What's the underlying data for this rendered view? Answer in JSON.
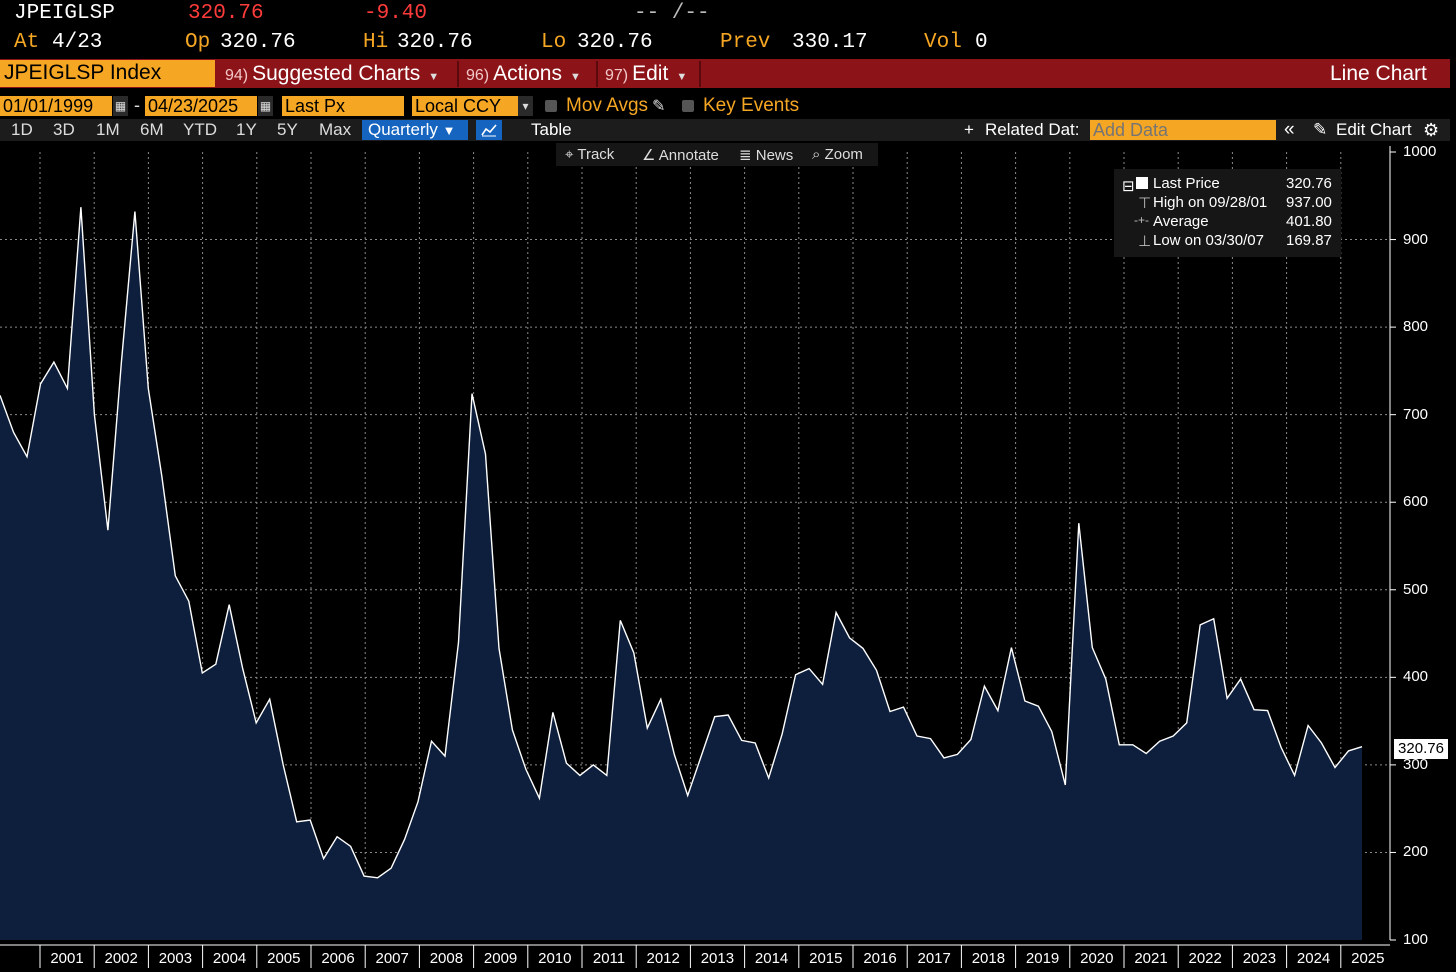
{
  "quote": {
    "ticker": "JPEIGLSP",
    "last": "320.76",
    "change": "-9.40",
    "time_placeholder": "-- /--",
    "at_label": "At",
    "at_value": "4/23",
    "op_label": "Op",
    "op_value": "320.76",
    "hi_label": "Hi",
    "hi_value": "320.76",
    "lo_label": "Lo",
    "lo_value": "320.76",
    "prev_label": "Prev",
    "prev_value": "330.17",
    "vol_label": "Vol",
    "vol_value": "0"
  },
  "menubar": {
    "security": "JPEIGLSP Index",
    "suggested_num": "94)",
    "suggested_label": "Suggested Charts",
    "actions_num": "96)",
    "actions_label": "Actions",
    "edit_num": "97)",
    "edit_label": "Edit",
    "chart_type": "Line Chart"
  },
  "controls": {
    "start_date": "01/01/1999",
    "dash": "-",
    "end_date": "04/23/2025",
    "field": "Last Px",
    "currency": "Local CCY",
    "mov_avgs": "Mov Avgs",
    "key_events": "Key Events"
  },
  "ranges": {
    "items": [
      "1D",
      "3D",
      "1M",
      "6M",
      "YTD",
      "1Y",
      "5Y",
      "Max"
    ],
    "period": "Quarterly",
    "table": "Table",
    "related_data": "Related Dat:",
    "add_data_placeholder": "Add Data",
    "edit_chart": "Edit Chart"
  },
  "tools": {
    "track": "Track",
    "annotate": "Annotate",
    "news": "News",
    "zoom": "Zoom"
  },
  "colors": {
    "accent": "#f5a623",
    "menu_red": "#8c1419",
    "area_fill": "#0d1f3c",
    "line": "#ffffff",
    "active_blue": "#1565c0"
  },
  "chart_data": {
    "type": "area",
    "ylim": [
      100,
      1000
    ],
    "yticks": [
      "100",
      "200",
      "300",
      "400",
      "500",
      "600",
      "700",
      "800",
      "900",
      "1000"
    ],
    "xticks": [
      "2001",
      "2002",
      "2003",
      "2004",
      "2005",
      "2006",
      "2007",
      "2008",
      "2009",
      "2010",
      "2011",
      "2012",
      "2013",
      "2014",
      "2015",
      "2016",
      "2017",
      "2018",
      "2019",
      "2020",
      "2021",
      "2022",
      "2023",
      "2024",
      "2025"
    ],
    "grid": true,
    "last_value_label": "320.76",
    "legend": {
      "last_price_label": "Last Price",
      "last_price_value": "320.76",
      "high_label": "High on 09/28/01",
      "high_value": "937.00",
      "average_label": "Average",
      "average_value": "401.80",
      "low_label": "Low on 03/30/07",
      "low_value": "169.87"
    },
    "series": [
      {
        "values": [
          722,
          680,
          652,
          735,
          760,
          730,
          937,
          700,
          568,
          760,
          932,
          730,
          630,
          516,
          487,
          405,
          415,
          483,
          410,
          348,
          375,
          300,
          235,
          237,
          193,
          218,
          207,
          173,
          171,
          182,
          215,
          258,
          327,
          310,
          440,
          724,
          655,
          433,
          340,
          295,
          262,
          360,
          302,
          288,
          300,
          288,
          465,
          428,
          342,
          375,
          312,
          265,
          310,
          355,
          357,
          328,
          325,
          285,
          335,
          403,
          410,
          392,
          474,
          445,
          433,
          408,
          361,
          366,
          333,
          330,
          308,
          312,
          329,
          390,
          362,
          434,
          373,
          367,
          338,
          277,
          576,
          434,
          398,
          323,
          323,
          313,
          327,
          333,
          348,
          460,
          467,
          376,
          398,
          363,
          362,
          320,
          288,
          345,
          325,
          297,
          316,
          320.76
        ]
      }
    ]
  }
}
